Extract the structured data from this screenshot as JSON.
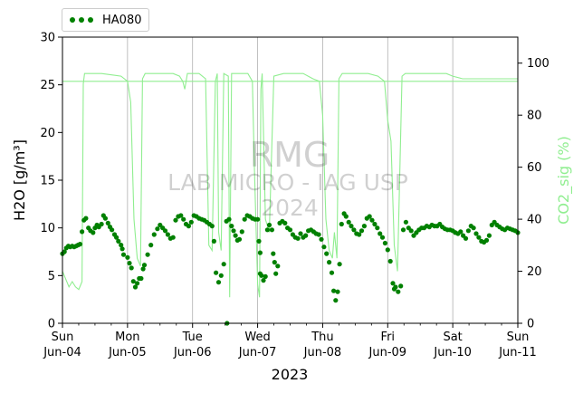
{
  "chart_data": {
    "type": "scatter",
    "watermark": [
      "RMG",
      "LAB MICRO - IAG USP",
      "2024"
    ],
    "xlabel": "2023",
    "ylabel_left": "H2O [g/m³]",
    "ylabel_right": "CO2_sig (%)",
    "xlim": [
      0,
      7
    ],
    "ylim_left": [
      0,
      30
    ],
    "ylim_right": [
      0,
      110
    ],
    "xgrid": true,
    "legend_position": "above-left",
    "colors": {
      "h2o": "#008000",
      "co2": "#90ee90"
    },
    "x_ticks": [
      {
        "x": 0,
        "day": "Sun",
        "date": "Jun-04"
      },
      {
        "x": 1,
        "day": "Mon",
        "date": "Jun-05"
      },
      {
        "x": 2,
        "day": "Tue",
        "date": "Jun-06"
      },
      {
        "x": 3,
        "day": "Wed",
        "date": "Jun-07"
      },
      {
        "x": 4,
        "day": "Thu",
        "date": "Jun-08"
      },
      {
        "x": 5,
        "day": "Fri",
        "date": "Jun-09"
      },
      {
        "x": 6,
        "day": "Sat",
        "date": "Jun-10"
      },
      {
        "x": 7,
        "day": "Sun",
        "date": "Jun-11"
      }
    ],
    "y_left_ticks": [
      0,
      5,
      10,
      15,
      20,
      25,
      30
    ],
    "y_right_ticks": [
      0,
      20,
      40,
      60,
      80,
      100
    ],
    "threshold_right": 93,
    "series": [
      {
        "name": "HA080",
        "axis": "left",
        "points": [
          [
            0.0,
            7.3
          ],
          [
            0.03,
            7.5
          ],
          [
            0.06,
            7.9
          ],
          [
            0.09,
            8.1
          ],
          [
            0.12,
            8.0
          ],
          [
            0.15,
            8.1
          ],
          [
            0.18,
            8.0
          ],
          [
            0.21,
            8.1
          ],
          [
            0.24,
            8.2
          ],
          [
            0.27,
            8.3
          ],
          [
            0.3,
            9.6
          ],
          [
            0.33,
            10.8
          ],
          [
            0.36,
            11.0
          ],
          [
            0.4,
            10.0
          ],
          [
            0.43,
            9.7
          ],
          [
            0.47,
            9.5
          ],
          [
            0.5,
            10.0
          ],
          [
            0.53,
            10.3
          ],
          [
            0.56,
            10.1
          ],
          [
            0.6,
            10.4
          ],
          [
            0.63,
            11.3
          ],
          [
            0.66,
            11.0
          ],
          [
            0.7,
            10.5
          ],
          [
            0.73,
            10.1
          ],
          [
            0.76,
            9.8
          ],
          [
            0.8,
            9.3
          ],
          [
            0.83,
            9.0
          ],
          [
            0.86,
            8.6
          ],
          [
            0.9,
            8.2
          ],
          [
            0.92,
            7.8
          ],
          [
            0.94,
            7.2
          ],
          [
            1.0,
            6.9
          ],
          [
            1.03,
            6.3
          ],
          [
            1.06,
            5.8
          ],
          [
            1.09,
            4.4
          ],
          [
            1.12,
            3.8
          ],
          [
            1.15,
            4.2
          ],
          [
            1.18,
            4.7
          ],
          [
            1.21,
            4.7
          ],
          [
            1.26,
            6.1
          ],
          [
            1.31,
            7.2
          ],
          [
            1.36,
            8.2
          ],
          [
            1.41,
            9.3
          ],
          [
            1.46,
            9.9
          ],
          [
            1.5,
            10.3
          ],
          [
            1.54,
            10.0
          ],
          [
            1.58,
            9.7
          ],
          [
            1.62,
            9.3
          ],
          [
            1.66,
            8.9
          ],
          [
            1.7,
            9.0
          ],
          [
            1.74,
            10.8
          ],
          [
            1.78,
            11.2
          ],
          [
            1.82,
            11.3
          ],
          [
            1.86,
            10.9
          ],
          [
            1.9,
            10.4
          ],
          [
            1.94,
            10.2
          ],
          [
            1.98,
            10.6
          ],
          [
            2.02,
            11.3
          ],
          [
            2.06,
            11.2
          ],
          [
            2.1,
            11.0
          ],
          [
            2.14,
            10.9
          ],
          [
            2.18,
            10.8
          ],
          [
            2.22,
            10.6
          ],
          [
            2.26,
            10.4
          ],
          [
            2.3,
            10.2
          ],
          [
            2.33,
            8.6
          ],
          [
            2.36,
            5.3
          ],
          [
            2.4,
            4.3
          ],
          [
            2.44,
            5.0
          ],
          [
            2.48,
            6.2
          ],
          [
            2.52,
            10.7
          ],
          [
            2.56,
            10.9
          ],
          [
            2.6,
            10.2
          ],
          [
            2.63,
            9.7
          ],
          [
            2.66,
            9.2
          ],
          [
            2.69,
            8.7
          ],
          [
            2.72,
            8.8
          ],
          [
            2.76,
            9.6
          ],
          [
            2.8,
            10.9
          ],
          [
            2.84,
            11.3
          ],
          [
            2.88,
            11.2
          ],
          [
            2.92,
            11.0
          ],
          [
            2.96,
            10.9
          ],
          [
            3.0,
            10.9
          ],
          [
            3.02,
            8.6
          ],
          [
            3.04,
            7.4
          ],
          [
            3.06,
            5.0
          ],
          [
            3.09,
            4.5
          ],
          [
            3.12,
            4.9
          ],
          [
            3.15,
            9.8
          ],
          [
            3.18,
            10.3
          ],
          [
            3.22,
            9.8
          ],
          [
            3.24,
            7.3
          ],
          [
            3.26,
            6.4
          ],
          [
            3.28,
            5.2
          ],
          [
            3.31,
            6.0
          ],
          [
            3.34,
            10.5
          ],
          [
            3.38,
            10.7
          ],
          [
            3.42,
            10.5
          ],
          [
            3.46,
            10.0
          ],
          [
            3.5,
            9.8
          ],
          [
            3.54,
            9.3
          ],
          [
            3.58,
            9.0
          ],
          [
            3.62,
            8.9
          ],
          [
            3.66,
            9.4
          ],
          [
            3.7,
            9.0
          ],
          [
            3.74,
            9.2
          ],
          [
            3.78,
            9.7
          ],
          [
            3.82,
            9.8
          ],
          [
            3.86,
            9.6
          ],
          [
            3.9,
            9.4
          ],
          [
            3.94,
            9.3
          ],
          [
            3.98,
            8.8
          ],
          [
            4.02,
            8.0
          ],
          [
            4.06,
            7.3
          ],
          [
            4.1,
            6.4
          ],
          [
            4.14,
            5.3
          ],
          [
            4.17,
            3.4
          ],
          [
            4.2,
            2.4
          ],
          [
            4.23,
            3.3
          ],
          [
            4.26,
            6.2
          ],
          [
            4.29,
            10.4
          ],
          [
            4.33,
            11.5
          ],
          [
            4.36,
            11.2
          ],
          [
            4.4,
            10.6
          ],
          [
            4.44,
            10.2
          ],
          [
            4.48,
            9.8
          ],
          [
            4.52,
            9.4
          ],
          [
            4.56,
            9.3
          ],
          [
            4.6,
            9.7
          ],
          [
            4.64,
            10.2
          ],
          [
            4.68,
            11.0
          ],
          [
            4.72,
            11.2
          ],
          [
            4.76,
            10.8
          ],
          [
            4.8,
            10.4
          ],
          [
            4.84,
            10.0
          ],
          [
            4.88,
            9.4
          ],
          [
            4.92,
            9.0
          ],
          [
            4.96,
            8.4
          ],
          [
            5.0,
            7.7
          ],
          [
            5.04,
            6.5
          ],
          [
            5.08,
            4.2
          ],
          [
            5.1,
            3.6
          ],
          [
            5.12,
            3.8
          ],
          [
            5.16,
            3.3
          ],
          [
            5.2,
            3.9
          ],
          [
            5.24,
            9.8
          ],
          [
            5.28,
            10.6
          ],
          [
            5.32,
            10.0
          ],
          [
            5.36,
            9.7
          ],
          [
            5.4,
            9.2
          ],
          [
            5.44,
            9.5
          ],
          [
            5.48,
            9.8
          ],
          [
            5.52,
            10.0
          ],
          [
            5.56,
            10.0
          ],
          [
            5.6,
            10.2
          ],
          [
            5.64,
            10.1
          ],
          [
            5.68,
            10.3
          ],
          [
            5.72,
            10.2
          ],
          [
            5.76,
            10.2
          ],
          [
            5.8,
            10.4
          ],
          [
            5.84,
            10.1
          ],
          [
            5.88,
            9.9
          ],
          [
            5.92,
            9.8
          ],
          [
            5.96,
            9.8
          ],
          [
            6.0,
            9.7
          ],
          [
            6.04,
            9.5
          ],
          [
            6.08,
            9.4
          ],
          [
            6.12,
            9.6
          ],
          [
            6.16,
            9.2
          ],
          [
            6.2,
            8.9
          ],
          [
            6.24,
            9.7
          ],
          [
            6.28,
            10.2
          ],
          [
            6.32,
            10.0
          ],
          [
            6.36,
            9.4
          ],
          [
            6.4,
            9.0
          ],
          [
            6.44,
            8.6
          ],
          [
            6.48,
            8.5
          ],
          [
            6.52,
            8.7
          ],
          [
            6.56,
            9.2
          ],
          [
            6.6,
            10.3
          ],
          [
            6.64,
            10.6
          ],
          [
            6.68,
            10.3
          ],
          [
            6.72,
            10.1
          ],
          [
            6.76,
            9.9
          ],
          [
            6.8,
            9.8
          ],
          [
            6.84,
            10.0
          ],
          [
            6.88,
            9.9
          ],
          [
            6.92,
            9.8
          ],
          [
            6.96,
            9.7
          ],
          [
            7.0,
            9.5
          ],
          [
            3.04,
            5.2
          ],
          [
            1.24,
            5.7
          ],
          [
            2.53,
            0.0
          ]
        ]
      },
      {
        "name": "CO2_sig",
        "axis": "right",
        "points": [
          [
            0.0,
            20
          ],
          [
            0.05,
            17
          ],
          [
            0.1,
            14
          ],
          [
            0.15,
            16
          ],
          [
            0.2,
            14
          ],
          [
            0.25,
            13
          ],
          [
            0.3,
            16
          ],
          [
            0.32,
            92
          ],
          [
            0.34,
            96
          ],
          [
            0.6,
            96
          ],
          [
            0.9,
            95
          ],
          [
            1.0,
            93
          ],
          [
            1.05,
            85
          ],
          [
            1.1,
            40
          ],
          [
            1.15,
            25
          ],
          [
            1.2,
            22
          ],
          [
            1.23,
            94
          ],
          [
            1.27,
            96
          ],
          [
            1.7,
            96
          ],
          [
            1.8,
            95
          ],
          [
            1.85,
            93
          ],
          [
            1.88,
            90
          ],
          [
            1.92,
            96
          ],
          [
            2.1,
            96
          ],
          [
            2.2,
            94
          ],
          [
            2.25,
            30
          ],
          [
            2.3,
            28
          ],
          [
            2.35,
            93
          ],
          [
            2.38,
            96
          ],
          [
            2.4,
            35
          ],
          [
            2.44,
            28
          ],
          [
            2.48,
            96
          ],
          [
            2.55,
            95
          ],
          [
            2.57,
            10
          ],
          [
            2.6,
            96
          ],
          [
            2.85,
            96
          ],
          [
            2.92,
            93
          ],
          [
            2.95,
            60
          ],
          [
            3.0,
            15
          ],
          [
            3.03,
            10
          ],
          [
            3.05,
            90
          ],
          [
            3.07,
            96
          ],
          [
            3.12,
            40
          ],
          [
            3.18,
            35
          ],
          [
            3.25,
            95
          ],
          [
            3.4,
            96
          ],
          [
            3.7,
            96
          ],
          [
            3.85,
            94
          ],
          [
            3.95,
            93
          ],
          [
            4.0,
            80
          ],
          [
            4.05,
            40
          ],
          [
            4.1,
            28
          ],
          [
            4.15,
            25
          ],
          [
            4.18,
            35
          ],
          [
            4.22,
            25
          ],
          [
            4.25,
            94
          ],
          [
            4.3,
            96
          ],
          [
            4.7,
            96
          ],
          [
            4.85,
            95
          ],
          [
            4.95,
            93
          ],
          [
            5.0,
            78
          ],
          [
            5.05,
            70
          ],
          [
            5.1,
            30
          ],
          [
            5.15,
            20
          ],
          [
            5.22,
            95
          ],
          [
            5.27,
            96
          ],
          [
            5.6,
            96
          ],
          [
            5.9,
            96
          ],
          [
            6.0,
            95
          ],
          [
            6.15,
            94
          ],
          [
            6.4,
            94
          ],
          [
            6.6,
            94
          ],
          [
            6.8,
            94
          ],
          [
            7.0,
            94
          ]
        ]
      }
    ]
  }
}
